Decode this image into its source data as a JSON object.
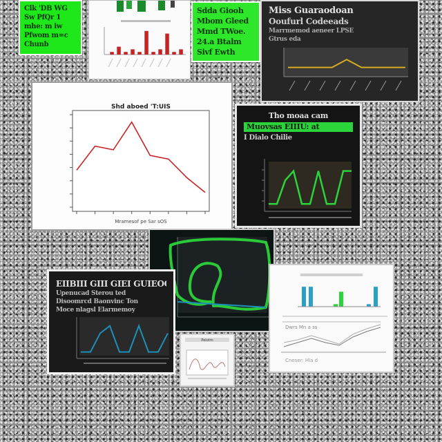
{
  "colors": {
    "green_card": "#1ee81a",
    "red_line": "#c62424",
    "gold_line": "#d6ad1f",
    "teal_line": "#1f8fb8",
    "neon_green": "#2bd43a"
  },
  "cards": {
    "green_left": {
      "lines": [
        "Clk 'DB WG",
        "Sw PfQr 1",
        "mhe: m iw",
        "Pfwom m=c",
        "Chunb"
      ]
    },
    "bars_top": {
      "caption": ""
    },
    "green_mid": {
      "lines": [
        "Sdda   Giooh",
        "Mbom  Gleed",
        "Mmd TWoe.",
        "24.a Btalm",
        "Sivf  Ewth"
      ]
    },
    "dark_top": {
      "title": "Miss Guaraodoan",
      "subtitle": "Ooufurl Codeeads",
      "text_lines": [
        "Marrmemod aeneer LPSE",
        "Gtrus eda"
      ]
    },
    "main_chart": {
      "title": "Shd aboed 'T:UIS",
      "xlabel": "Mramesof pe Sar sOS"
    },
    "dark_right": {
      "title": "Tho moaa  cam",
      "highlight": "Muovsas EIIIU: at",
      "sub": "I  Dialo Chilie"
    },
    "dark_bottom": {
      "title": "EIIBIII GIII GIEI GUIEOCO",
      "lines": [
        "Upenucad Sterou ted",
        "Disoomrcd Baonvinc Ton",
        "Moce nlagsl Elarmemoy"
      ]
    },
    "mini": {
      "label": "Pelotm"
    },
    "white_right": {
      "lines": [
        "Dwrs Mn a ss",
        "Cneser: Hla d"
      ]
    }
  },
  "chart_data": [
    {
      "type": "line",
      "x": [
        0,
        1,
        2,
        3,
        4,
        5,
        6,
        7
      ],
      "series": [
        {
          "values": [
            2.0,
            3.3,
            3.1,
            4.6,
            2.8,
            2.6,
            1.6,
            0.8
          ]
        }
      ],
      "xlim": [
        0,
        7
      ],
      "ylim": [
        0,
        5
      ],
      "title": "Shd aboed 'T:UIS",
      "xlabel": "Mramesof pe Sar sOS",
      "ylabel": "",
      "grid": false
    },
    {
      "type": "bar",
      "categories": [
        "a",
        "b",
        "c",
        "d",
        "e",
        "f",
        "g",
        "h",
        "i",
        "j",
        "k"
      ],
      "values": [
        1,
        3,
        1,
        2,
        1,
        9,
        1,
        2,
        8,
        1,
        2
      ],
      "ylim": [
        0,
        10
      ]
    },
    {
      "type": "line",
      "x": [
        0,
        1,
        2,
        3,
        4,
        5,
        6,
        7,
        8
      ],
      "series": [
        {
          "values": [
            3,
            3,
            3,
            3,
            6,
            3,
            3,
            3,
            3
          ]
        }
      ],
      "ylim": [
        0,
        10
      ]
    },
    {
      "type": "line",
      "x": [
        0,
        1,
        2,
        3,
        4,
        5,
        6,
        7,
        8,
        9,
        10
      ],
      "series": [
        {
          "values": [
            1,
            1,
            6,
            8,
            1,
            1,
            8,
            1,
            1,
            8,
            8
          ]
        }
      ],
      "ylim": [
        0,
        10
      ]
    },
    {
      "type": "line",
      "x": [
        0,
        1,
        2,
        3,
        4,
        5,
        6,
        7,
        8,
        9
      ],
      "series": [
        {
          "values": [
            0.5,
            0.5,
            3,
            4,
            0.5,
            0.5,
            4,
            0.5,
            0.5,
            3
          ]
        }
      ],
      "ylim": [
        0,
        5
      ]
    },
    {
      "type": "bar",
      "categories": [
        "1",
        "2",
        "3",
        "4",
        "5",
        "6"
      ],
      "values": [
        8,
        8,
        1,
        6,
        1,
        8
      ],
      "ylim": [
        0,
        10
      ]
    }
  ]
}
